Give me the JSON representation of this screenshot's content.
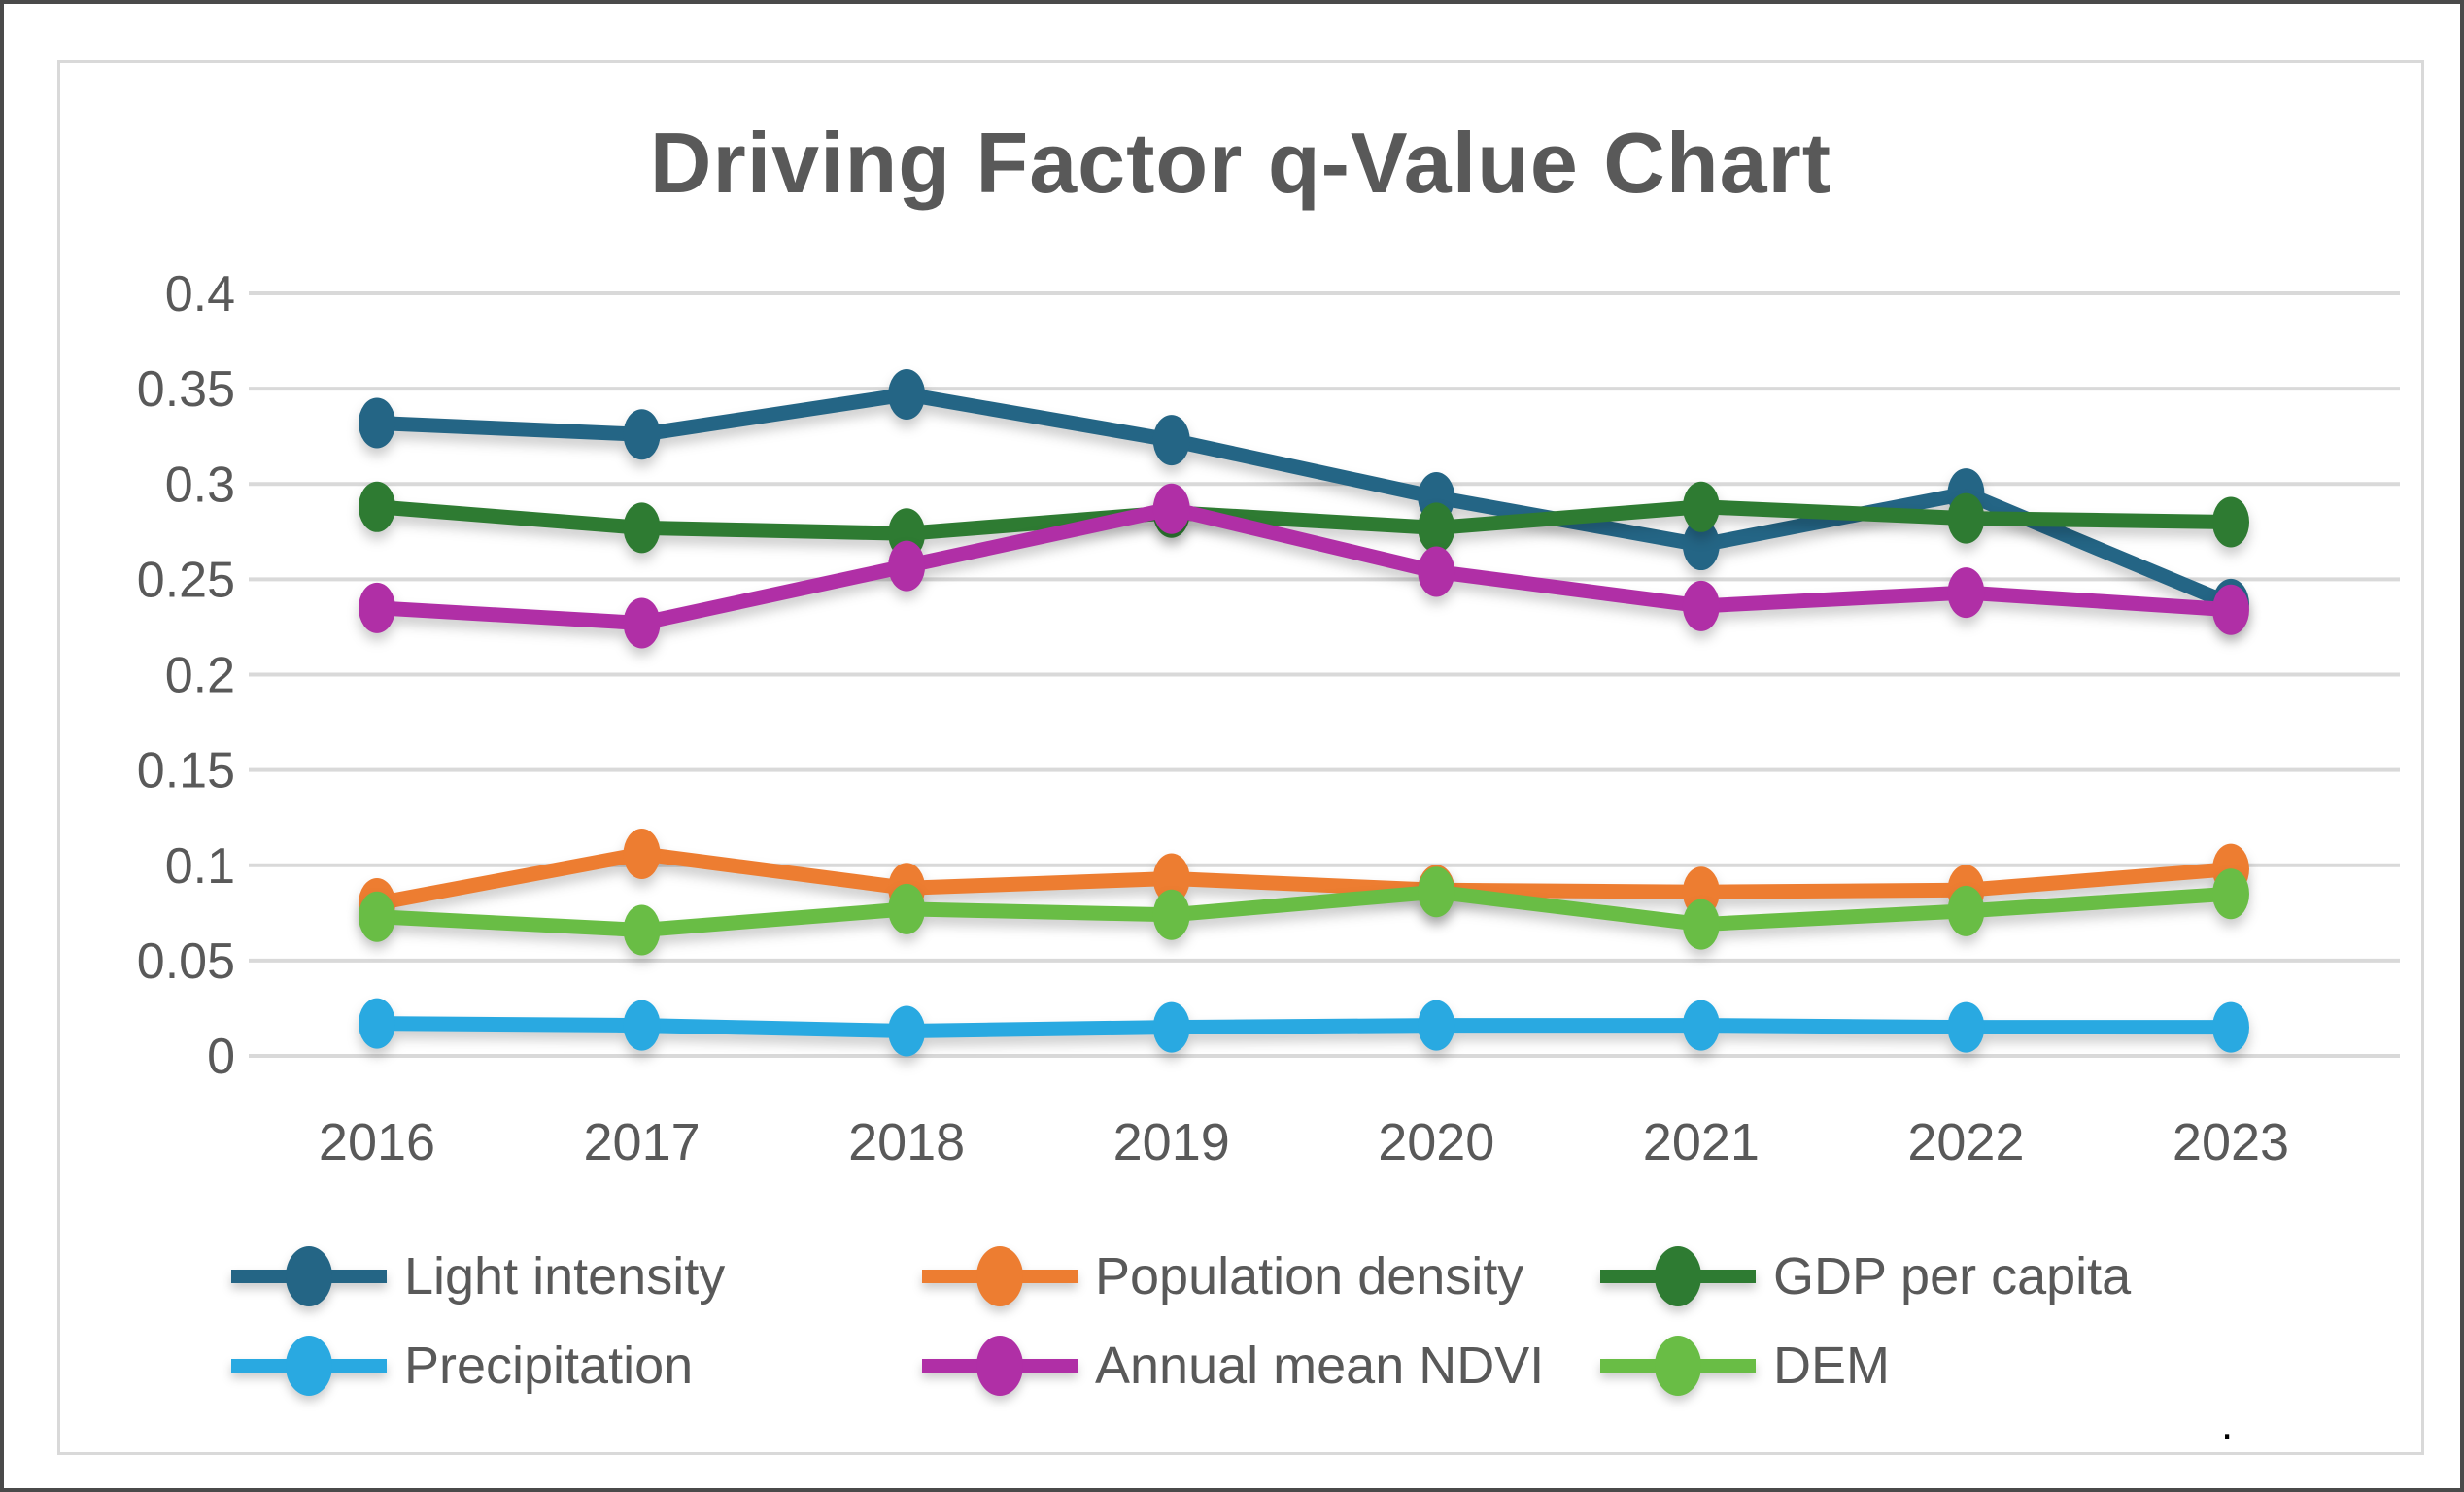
{
  "title": "Driving Factor q-Value Chart",
  "stray_period": ".",
  "colors": {
    "text_gray": "#595959",
    "gridline": "#d9d9d9",
    "panel_border": "#d9d9d9",
    "frame": "#4a4a4a"
  },
  "chart_data": {
    "type": "line",
    "title": "Driving Factor q-Value Chart",
    "xlabel": "",
    "ylabel": "",
    "categories": [
      "2016",
      "2017",
      "2018",
      "2019",
      "2020",
      "2021",
      "2022",
      "2023"
    ],
    "series": [
      {
        "name": "Light intensity",
        "color": "#246585",
        "values": [
          0.332,
          0.326,
          0.347,
          0.323,
          0.293,
          0.268,
          0.295,
          0.237
        ]
      },
      {
        "name": "Population density",
        "color": "#ED7D31",
        "values": [
          0.08,
          0.106,
          0.088,
          0.093,
          0.087,
          0.086,
          0.087,
          0.098
        ]
      },
      {
        "name": "GDP per capita",
        "color": "#2E7B32",
        "values": [
          0.288,
          0.277,
          0.274,
          0.285,
          0.277,
          0.288,
          0.282,
          0.28
        ]
      },
      {
        "name": "Precipitation",
        "color": "#29A9E1",
        "values": [
          0.017,
          0.016,
          0.013,
          0.015,
          0.016,
          0.016,
          0.015,
          0.015
        ]
      },
      {
        "name": "Annual mean NDVI",
        "color": "#B02FA6",
        "values": [
          0.235,
          0.227,
          0.257,
          0.287,
          0.254,
          0.236,
          0.243,
          0.234
        ]
      },
      {
        "name": "DEM",
        "color": "#69BD45",
        "values": [
          0.073,
          0.066,
          0.077,
          0.074,
          0.086,
          0.069,
          0.076,
          0.085
        ]
      }
    ],
    "ylim": [
      0,
      0.4
    ],
    "ytick_step": 0.05,
    "yticks": [
      "0.4",
      "0.35",
      "0.3",
      "0.25",
      "0.2",
      "0.15",
      "0.1",
      "0.05",
      "0"
    ],
    "grid": true,
    "legend_position": "bottom",
    "legend_rows": [
      [
        "Light intensity",
        "Population density",
        "GDP per capita"
      ],
      [
        "Precipitation",
        "Annual mean NDVI",
        "DEM"
      ]
    ]
  }
}
